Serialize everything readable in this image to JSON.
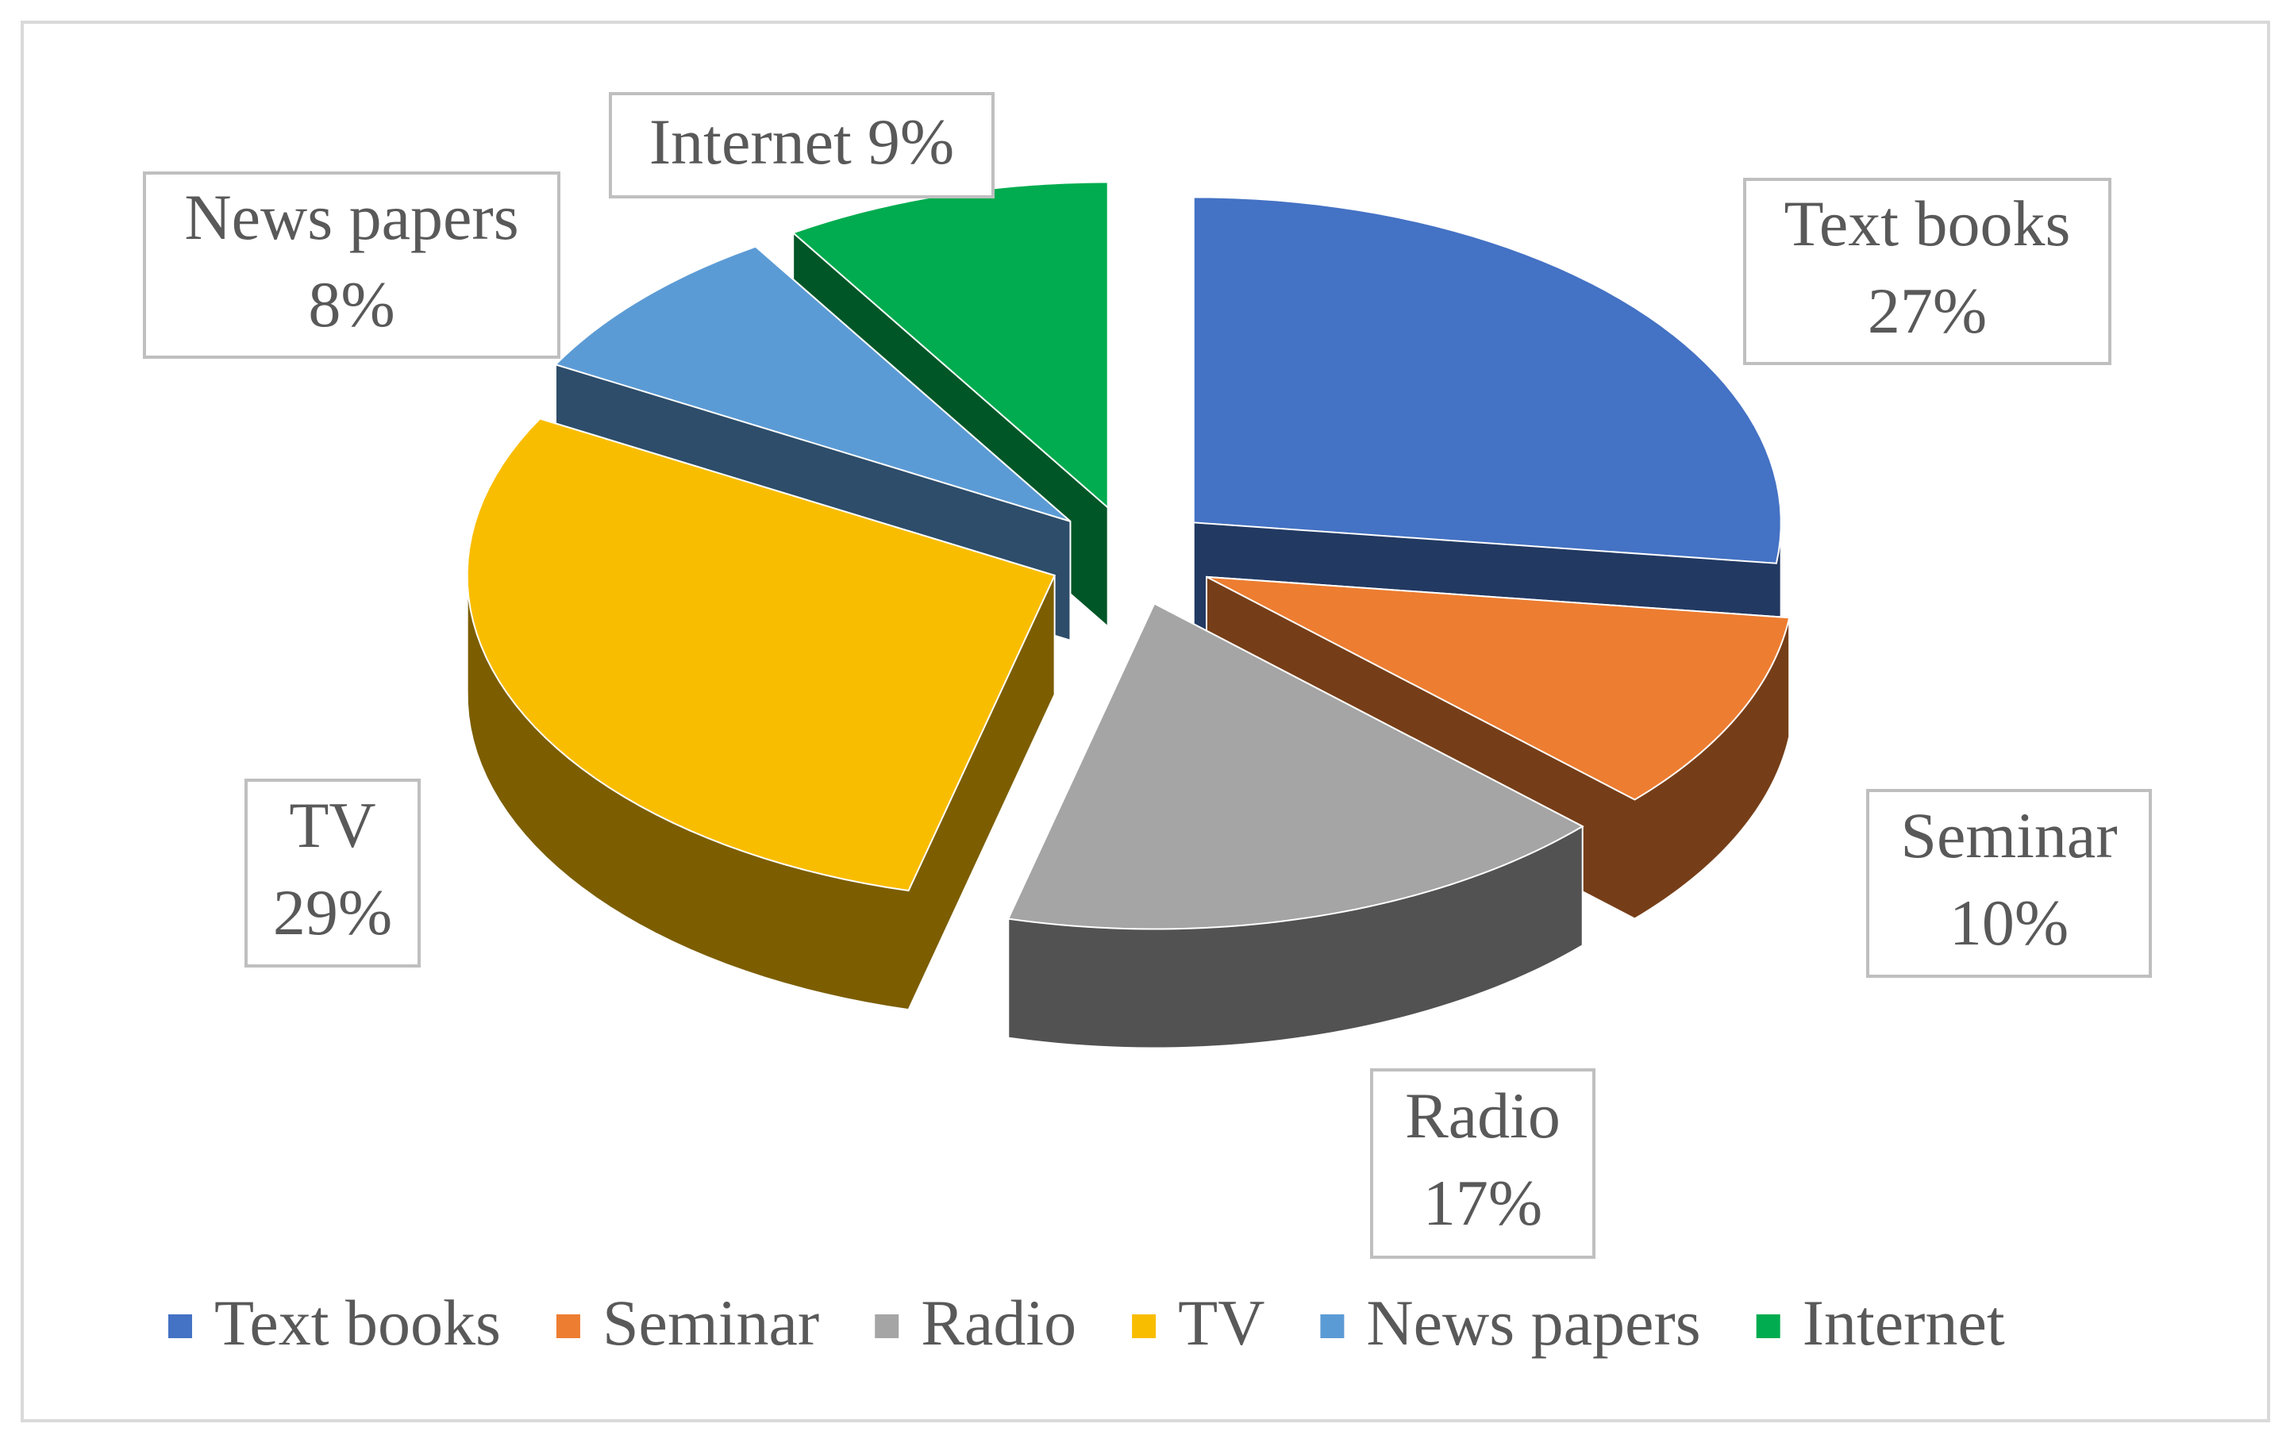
{
  "chart_data": {
    "type": "pie3d",
    "categories": [
      "Text books",
      "Seminar",
      "Radio",
      "TV",
      "News papers",
      "Internet"
    ],
    "values": [
      27,
      10,
      17,
      29,
      8,
      9
    ],
    "value_labels": [
      "27%",
      "10%",
      "17%",
      "29%",
      "8%",
      "9%"
    ],
    "colors": [
      "#4472c4",
      "#ed7d31",
      "#a5a5a5",
      "#f9bd00",
      "#5b9bd5",
      "#00ac4f"
    ],
    "legend": "bottom"
  }
}
